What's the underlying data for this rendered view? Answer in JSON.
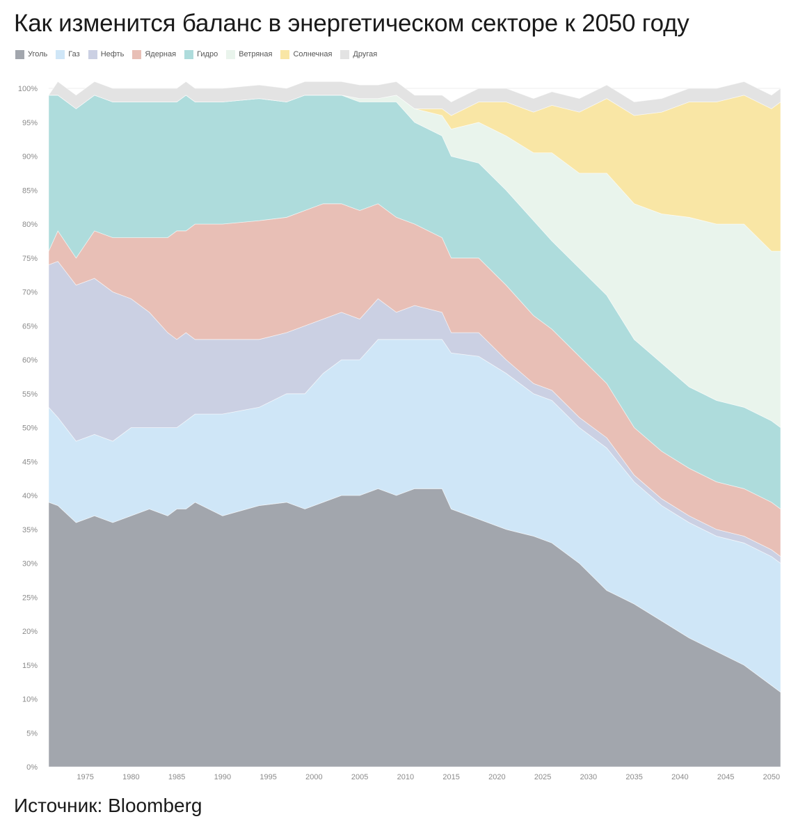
{
  "title": "Как изменится баланс в энергетическом секторе к 2050 году",
  "source": "Источник: Bloomberg",
  "chart_data": {
    "type": "area",
    "stacked": true,
    "title": "Как изменится баланс в энергетическом секторе к 2050 году",
    "xlabel": "",
    "ylabel": "",
    "xlim": [
      1971,
      2051
    ],
    "ylim": [
      0,
      100
    ],
    "x_ticks": [
      1975,
      1980,
      1985,
      1990,
      1995,
      2000,
      2005,
      2010,
      2015,
      2020,
      2025,
      2030,
      2035,
      2040,
      2045,
      2050
    ],
    "y_ticks": [
      0,
      5,
      10,
      15,
      20,
      25,
      30,
      35,
      40,
      45,
      50,
      55,
      60,
      65,
      70,
      75,
      80,
      85,
      90,
      95,
      100
    ],
    "y_tick_suffix": "%",
    "legend_position": "top-left",
    "x": [
      1971,
      1972,
      1974,
      1976,
      1978,
      1980,
      1982,
      1984,
      1985,
      1986,
      1987,
      1990,
      1994,
      1997,
      1999,
      2001,
      2003,
      2005,
      2007,
      2009,
      2011,
      2014,
      2015,
      2018,
      2021,
      2024,
      2026,
      2029,
      2032,
      2035,
      2038,
      2041,
      2044,
      2047,
      2050,
      2051
    ],
    "series": [
      {
        "name": "Уголь",
        "color": "#a2a6ad",
        "values": [
          39,
          38.5,
          36,
          37,
          36,
          37,
          38,
          37,
          38,
          38,
          39,
          37,
          38.5,
          39,
          38,
          39,
          40,
          40,
          41,
          40,
          41,
          41,
          38,
          36.5,
          35,
          34,
          33,
          30,
          26,
          24,
          21.5,
          19,
          17,
          15,
          12,
          11
        ]
      },
      {
        "name": "Газ",
        "color": "#cfe6f7",
        "values": [
          14,
          13,
          12,
          12,
          12,
          13,
          12,
          13,
          12,
          13,
          13,
          15,
          14.5,
          16,
          17,
          19,
          20,
          20,
          22,
          23,
          22,
          22,
          23,
          24,
          23,
          21,
          21,
          20,
          21,
          18,
          17,
          17,
          17,
          18,
          19,
          19
        ]
      },
      {
        "name": "Нефть",
        "color": "#cbd0e3",
        "values": [
          21,
          23,
          23,
          23,
          22,
          19,
          17,
          14,
          13,
          13,
          11,
          11,
          10,
          9,
          10,
          8,
          7,
          6,
          6,
          4,
          5,
          4,
          3,
          3.5,
          2,
          1.5,
          1.5,
          1.5,
          1.5,
          1,
          1,
          1,
          1,
          1,
          1,
          1
        ]
      },
      {
        "name": "Ядерная",
        "color": "#e8bfb6",
        "values": [
          2,
          4.5,
          4,
          7,
          8,
          9,
          11,
          14,
          16,
          15,
          17,
          17,
          17.5,
          17,
          17,
          17,
          16,
          16,
          14,
          14,
          12,
          11,
          11,
          11,
          11,
          10,
          9,
          9,
          8,
          7,
          7,
          7,
          7,
          7,
          7,
          7
        ]
      },
      {
        "name": "Гидро",
        "color": "#aedcdc",
        "values": [
          23,
          20,
          22,
          20,
          20,
          20,
          20,
          20,
          19,
          20,
          18,
          18,
          18,
          17,
          17,
          16,
          16,
          16,
          15,
          17,
          15,
          15,
          15,
          14,
          14,
          14,
          13,
          13,
          13,
          13,
          13,
          12,
          12,
          12,
          12,
          12
        ]
      },
      {
        "name": "Ветряная",
        "color": "#e9f4ec",
        "values": [
          0,
          0,
          0,
          0,
          0,
          0,
          0,
          0,
          0,
          0,
          0,
          0,
          0,
          0,
          0,
          0,
          0,
          0.5,
          0.5,
          1,
          2,
          3,
          4,
          6,
          8,
          10,
          13,
          14,
          18,
          20,
          22,
          25,
          26,
          27,
          25,
          26
        ]
      },
      {
        "name": "Солнечная",
        "color": "#f9e6a5",
        "values": [
          0,
          0,
          0,
          0,
          0,
          0,
          0,
          0,
          0,
          0,
          0,
          0,
          0,
          0,
          0,
          0,
          0,
          0,
          0,
          0,
          0,
          1,
          2,
          3,
          5,
          6,
          7,
          9,
          11,
          13,
          15,
          17,
          18,
          19,
          21,
          22
        ]
      },
      {
        "name": "Другая",
        "color": "#e3e3e3",
        "values": [
          0,
          2,
          2,
          2,
          2,
          2,
          2,
          2,
          2,
          2,
          2,
          2,
          2,
          2,
          2,
          2,
          2,
          2,
          2,
          2,
          2,
          2,
          2,
          2,
          2,
          2,
          2,
          2,
          2,
          2,
          2,
          2,
          2,
          2,
          2,
          2
        ]
      }
    ]
  }
}
